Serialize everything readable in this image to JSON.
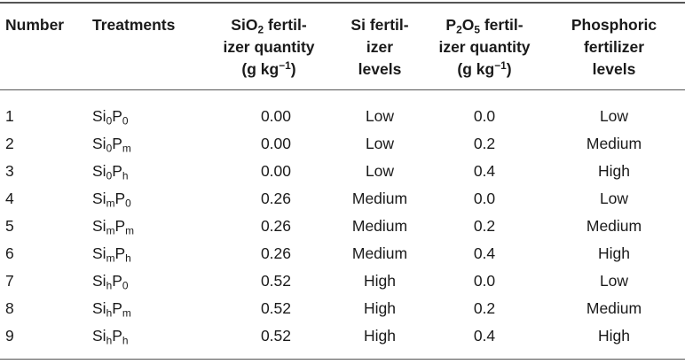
{
  "table": {
    "headers": {
      "number": "Number",
      "treatments": "Treatments",
      "sio2": {
        "line1_base": "SiO",
        "line1_sub": "2",
        "line1_rest": " fertil-",
        "line2": "izer quantity",
        "line3_base": "(g kg",
        "line3_sup": "−1",
        "line3_rest": ")"
      },
      "si_levels": {
        "line1": "Si fertil-",
        "line2": "izer",
        "line3": "levels"
      },
      "p2o5": {
        "line1_a": "P",
        "line1_sub1": "2",
        "line1_b": "O",
        "line1_sub2": "5",
        "line1_rest": " fertil-",
        "line2": "izer quantity",
        "line3_base": "(g kg",
        "line3_sup": "−1",
        "line3_rest": ")"
      },
      "p_levels": {
        "line1": "Phosphoric",
        "line2": "fertilizer",
        "line3": "levels"
      }
    },
    "rows": [
      {
        "number": "1",
        "si": "Si",
        "si_sub": "0",
        "p": "P",
        "p_sub": "0",
        "sio2": "0.00",
        "si_level": "Low",
        "p2o5": "0.0",
        "p_level": "Low"
      },
      {
        "number": "2",
        "si": "Si",
        "si_sub": "0",
        "p": "P",
        "p_sub": "m",
        "sio2": "0.00",
        "si_level": "Low",
        "p2o5": "0.2",
        "p_level": "Medium"
      },
      {
        "number": "3",
        "si": "Si",
        "si_sub": "0",
        "p": "P",
        "p_sub": "h",
        "sio2": "0.00",
        "si_level": "Low",
        "p2o5": "0.4",
        "p_level": "High"
      },
      {
        "number": "4",
        "si": "Si",
        "si_sub": "m",
        "p": "P",
        "p_sub": "0",
        "sio2": "0.26",
        "si_level": "Medium",
        "p2o5": "0.0",
        "p_level": "Low"
      },
      {
        "number": "5",
        "si": "Si",
        "si_sub": "m",
        "p": "P",
        "p_sub": "m",
        "sio2": "0.26",
        "si_level": "Medium",
        "p2o5": "0.2",
        "p_level": "Medium"
      },
      {
        "number": "6",
        "si": "Si",
        "si_sub": "m",
        "p": "P",
        "p_sub": "h",
        "sio2": "0.26",
        "si_level": "Medium",
        "p2o5": "0.4",
        "p_level": "High"
      },
      {
        "number": "7",
        "si": "Si",
        "si_sub": "h",
        "p": "P",
        "p_sub": "0",
        "sio2": "0.52",
        "si_level": "High",
        "p2o5": "0.0",
        "p_level": "Low"
      },
      {
        "number": "8",
        "si": "Si",
        "si_sub": "h",
        "p": "P",
        "p_sub": "m",
        "sio2": "0.52",
        "si_level": "High",
        "p2o5": "0.2",
        "p_level": "Medium"
      },
      {
        "number": "9",
        "si": "Si",
        "si_sub": "h",
        "p": "P",
        "p_sub": "h",
        "sio2": "0.52",
        "si_level": "High",
        "p2o5": "0.4",
        "p_level": "High"
      }
    ]
  }
}
